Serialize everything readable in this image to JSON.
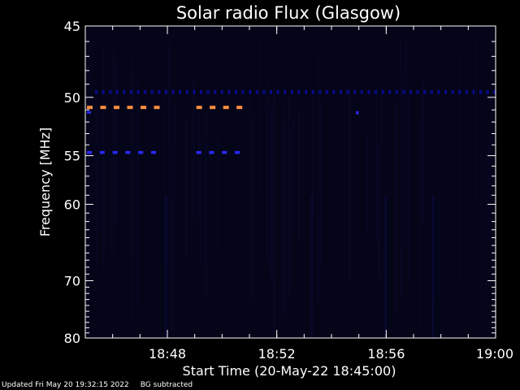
{
  "chart_data": {
    "type": "heatmap",
    "title": "Solar radio Flux (Glasgow)",
    "xlabel": "Start Time (20-May-22 18:45:00)",
    "ylabel": "Frequency [MHz]",
    "x_range": [
      "18:45",
      "19:00"
    ],
    "y_range": [
      45,
      80
    ],
    "x_ticks": [
      "18:48",
      "18:52",
      "18:56",
      "19:00"
    ],
    "y_ticks": [
      45,
      50,
      55,
      60,
      70,
      80
    ],
    "background": "BG subtracted",
    "colors": {
      "background": "#000000",
      "panel": "#05051a",
      "low": "#0a0a8a",
      "mid": "#2a2aff",
      "high": "#ff9040"
    },
    "features": [
      {
        "name": "",
        "frequency_mhz": 49.6,
        "start": "18:45",
        "end": "19:00",
        "intensity": "low",
        "pattern": "dotted"
      },
      {
        "name": "",
        "frequency_mhz": 50.8,
        "start": "18:45",
        "end": "18:47.6",
        "intensity": "high",
        "pattern": "dashed"
      },
      {
        "name": "",
        "frequency_mhz": 50.8,
        "start": "18:49",
        "end": "18:50.7",
        "intensity": "high",
        "pattern": "dashed"
      },
      {
        "name": "",
        "frequency_mhz": 54.7,
        "start": "18:45",
        "end": "18:47.6",
        "intensity": "mid",
        "pattern": "dashed"
      },
      {
        "name": "",
        "frequency_mhz": 54.7,
        "start": "18:49",
        "end": "18:50.7",
        "intensity": "mid",
        "pattern": "dashed"
      }
    ]
  },
  "footer": {
    "updated": "Updated Fri May 20 19:32:15 2022",
    "note": "BG subtracted"
  }
}
